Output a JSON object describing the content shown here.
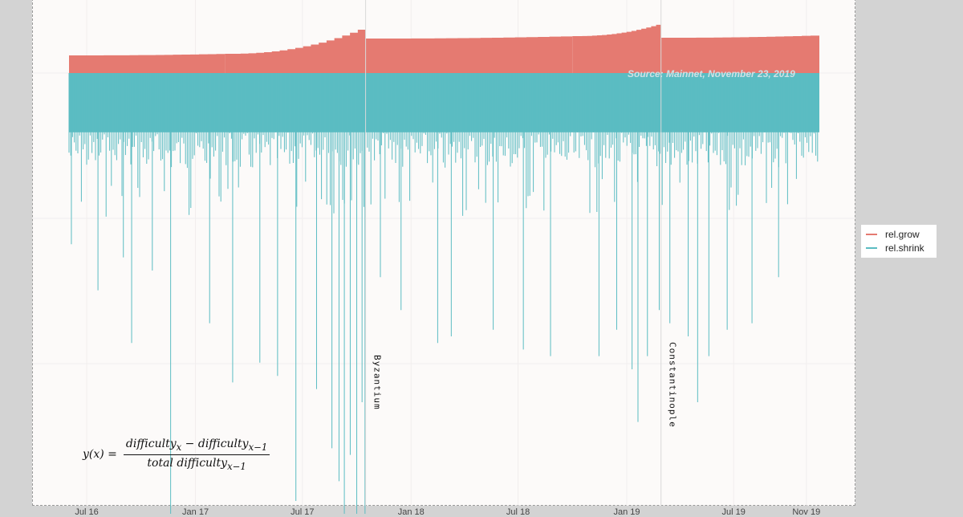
{
  "chart_data": {
    "type": "bar",
    "title": "",
    "xlabel": "",
    "ylabel": "",
    "x_ticks": [
      "Jul 16",
      "Jan 17",
      "Jul 17",
      "Jan 18",
      "Jul 18",
      "Jan 19",
      "Jul 19",
      "Nov 19"
    ],
    "x_start": "2016-06-01",
    "x_end": "2019-11-23",
    "series": [
      {
        "name": "rel.grow",
        "color": "#e57a71",
        "segments": [
          {
            "from": "2016-06-01",
            "to": "2017-02-20",
            "level_start": 0.22,
            "level_end": 0.24
          },
          {
            "from": "2017-02-20",
            "to": "2017-10-16",
            "level_start": 0.24,
            "level_end": 0.58
          },
          {
            "from": "2017-10-16",
            "to": "2018-10-01",
            "level_start": 0.43,
            "level_end": 0.46
          },
          {
            "from": "2018-10-01",
            "to": "2019-02-28",
            "level_start": 0.46,
            "level_end": 0.62
          },
          {
            "from": "2019-02-28",
            "to": "2019-11-23",
            "level_start": 0.44,
            "level_end": 0.47
          }
        ]
      },
      {
        "name": "rel.shrink",
        "color": "#5bbcc2",
        "dense_depth": 0.9,
        "common_depth": 1.6,
        "occasional_depth": 2.2,
        "spikes": [
          {
            "date": "2016-06-05",
            "depth": 2.6
          },
          {
            "date": "2016-07-20",
            "depth": 3.3
          },
          {
            "date": "2016-09-01",
            "depth": 2.8
          },
          {
            "date": "2016-09-15",
            "depth": 4.1
          },
          {
            "date": "2016-10-20",
            "depth": 3.0
          },
          {
            "date": "2016-11-20",
            "depth": 6.7
          },
          {
            "date": "2017-01-25",
            "depth": 3.8
          },
          {
            "date": "2017-03-05",
            "depth": 4.7
          },
          {
            "date": "2017-04-20",
            "depth": 4.4
          },
          {
            "date": "2017-05-20",
            "depth": 4.6
          },
          {
            "date": "2017-06-20",
            "depth": 6.5
          },
          {
            "date": "2017-07-25",
            "depth": 4.8
          },
          {
            "date": "2017-08-20",
            "depth": 5.7
          },
          {
            "date": "2017-09-01",
            "depth": 6.2
          },
          {
            "date": "2017-09-10",
            "depth": 7.4
          },
          {
            "date": "2017-09-20",
            "depth": 5.8
          },
          {
            "date": "2017-10-01",
            "depth": 7.2
          },
          {
            "date": "2017-10-10",
            "depth": 5.0
          },
          {
            "date": "2017-10-15",
            "depth": 7.8
          },
          {
            "date": "2017-11-10",
            "depth": 3.1
          },
          {
            "date": "2017-12-15",
            "depth": 3.6
          },
          {
            "date": "2018-02-15",
            "depth": 4.1
          },
          {
            "date": "2018-03-10",
            "depth": 4.0
          },
          {
            "date": "2018-05-20",
            "depth": 3.9
          },
          {
            "date": "2018-07-10",
            "depth": 4.2
          },
          {
            "date": "2018-08-25",
            "depth": 4.3
          },
          {
            "date": "2018-11-15",
            "depth": 4.3
          },
          {
            "date": "2018-12-15",
            "depth": 3.9
          },
          {
            "date": "2019-01-10",
            "depth": 4.5
          },
          {
            "date": "2019-01-20",
            "depth": 5.3
          },
          {
            "date": "2019-02-05",
            "depth": 4.3
          },
          {
            "date": "2019-02-25",
            "depth": 3.6
          },
          {
            "date": "2019-03-15",
            "depth": 3.8
          },
          {
            "date": "2019-04-15",
            "depth": 4.0
          },
          {
            "date": "2019-05-01",
            "depth": 5.0
          },
          {
            "date": "2019-05-20",
            "depth": 4.3
          },
          {
            "date": "2019-06-20",
            "depth": 3.9
          },
          {
            "date": "2019-08-01",
            "depth": 3.8
          },
          {
            "date": "2019-09-15",
            "depth": 3.1
          }
        ]
      }
    ],
    "vlines": [
      {
        "date": "2017-10-16",
        "label": "Byzantium"
      },
      {
        "date": "2019-02-28",
        "label": "Constantinople"
      }
    ],
    "annotation": "Source: Mainnet, November 23, 2019",
    "legend_position": "right",
    "grid": true
  },
  "formula": {
    "lhs": "y(x) =",
    "numerator": "difficulty",
    "minus": " − ",
    "sub_x": "x",
    "sub_x1": "x−1",
    "denominator": "total difficulty"
  }
}
